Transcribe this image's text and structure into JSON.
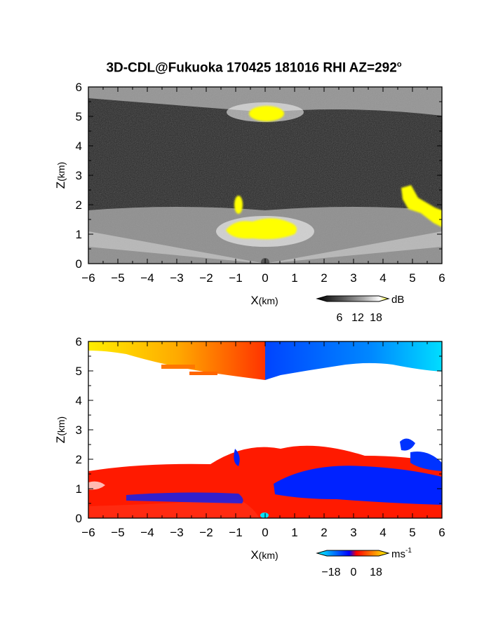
{
  "title": "3D-CDL@Fukuoka 170425 181016 RHI AZ=292",
  "title_superscript": "o",
  "chart_data": [
    {
      "type": "heatmap",
      "panel": "reflectivity",
      "xlabel_main": "X",
      "xlabel_unit": "(km)",
      "ylabel_main": "Z",
      "ylabel_unit": "(km)",
      "xlim": [
        -6,
        6
      ],
      "ylim": [
        0,
        6
      ],
      "xticks": [
        -6,
        -5,
        -4,
        -3,
        -2,
        -1,
        0,
        1,
        2,
        3,
        4,
        5,
        6
      ],
      "yticks": [
        0,
        1,
        2,
        3,
        4,
        5,
        6
      ],
      "colorbar": {
        "unit": "dB",
        "ticks": [
          6,
          12,
          18
        ],
        "colors": [
          "#000000",
          "#555555",
          "#aaaaaa",
          "#ffffff",
          "#ffff00"
        ]
      },
      "features": [
        {
          "name": "yellow",
          "x": [
            -0.3,
            0.5
          ],
          "z": [
            4.8,
            5.3
          ]
        },
        {
          "name": "yellow",
          "x": [
            -1.0,
            1.2
          ],
          "z": [
            0.8,
            1.5
          ]
        },
        {
          "name": "yellow",
          "x": [
            -1.0,
            -0.7
          ],
          "z": [
            1.7,
            2.3
          ]
        },
        {
          "name": "yellow",
          "x": [
            4.6,
            6.0
          ],
          "z": [
            1.2,
            2.6
          ]
        }
      ]
    },
    {
      "type": "heatmap",
      "panel": "radial velocity",
      "xlabel_main": "X",
      "xlabel_unit": "(km)",
      "ylabel_main": "Z",
      "ylabel_unit": "(km)",
      "xlim": [
        -6,
        6
      ],
      "ylim": [
        0,
        6
      ],
      "xticks": [
        -6,
        -5,
        -4,
        -3,
        -2,
        -1,
        0,
        1,
        2,
        3,
        4,
        5,
        6
      ],
      "yticks": [
        0,
        1,
        2,
        3,
        4,
        5,
        6
      ],
      "colorbar": {
        "unit": "ms",
        "unit_exponent": "-1",
        "ticks": [
          -18,
          0,
          18
        ],
        "tick_labels": [
          "−18",
          "0",
          "18"
        ],
        "colors": [
          "#00ffff",
          "#0000ff",
          "#ff0000",
          "#ffff00"
        ]
      },
      "features": [
        {
          "name": "upper layer",
          "x": [
            -6.0,
            6.0
          ],
          "z": [
            4.8,
            6.0
          ]
        },
        {
          "name": "lower layer",
          "x": [
            -6.0,
            6.0
          ],
          "z": [
            0.0,
            2.6
          ]
        }
      ]
    }
  ]
}
